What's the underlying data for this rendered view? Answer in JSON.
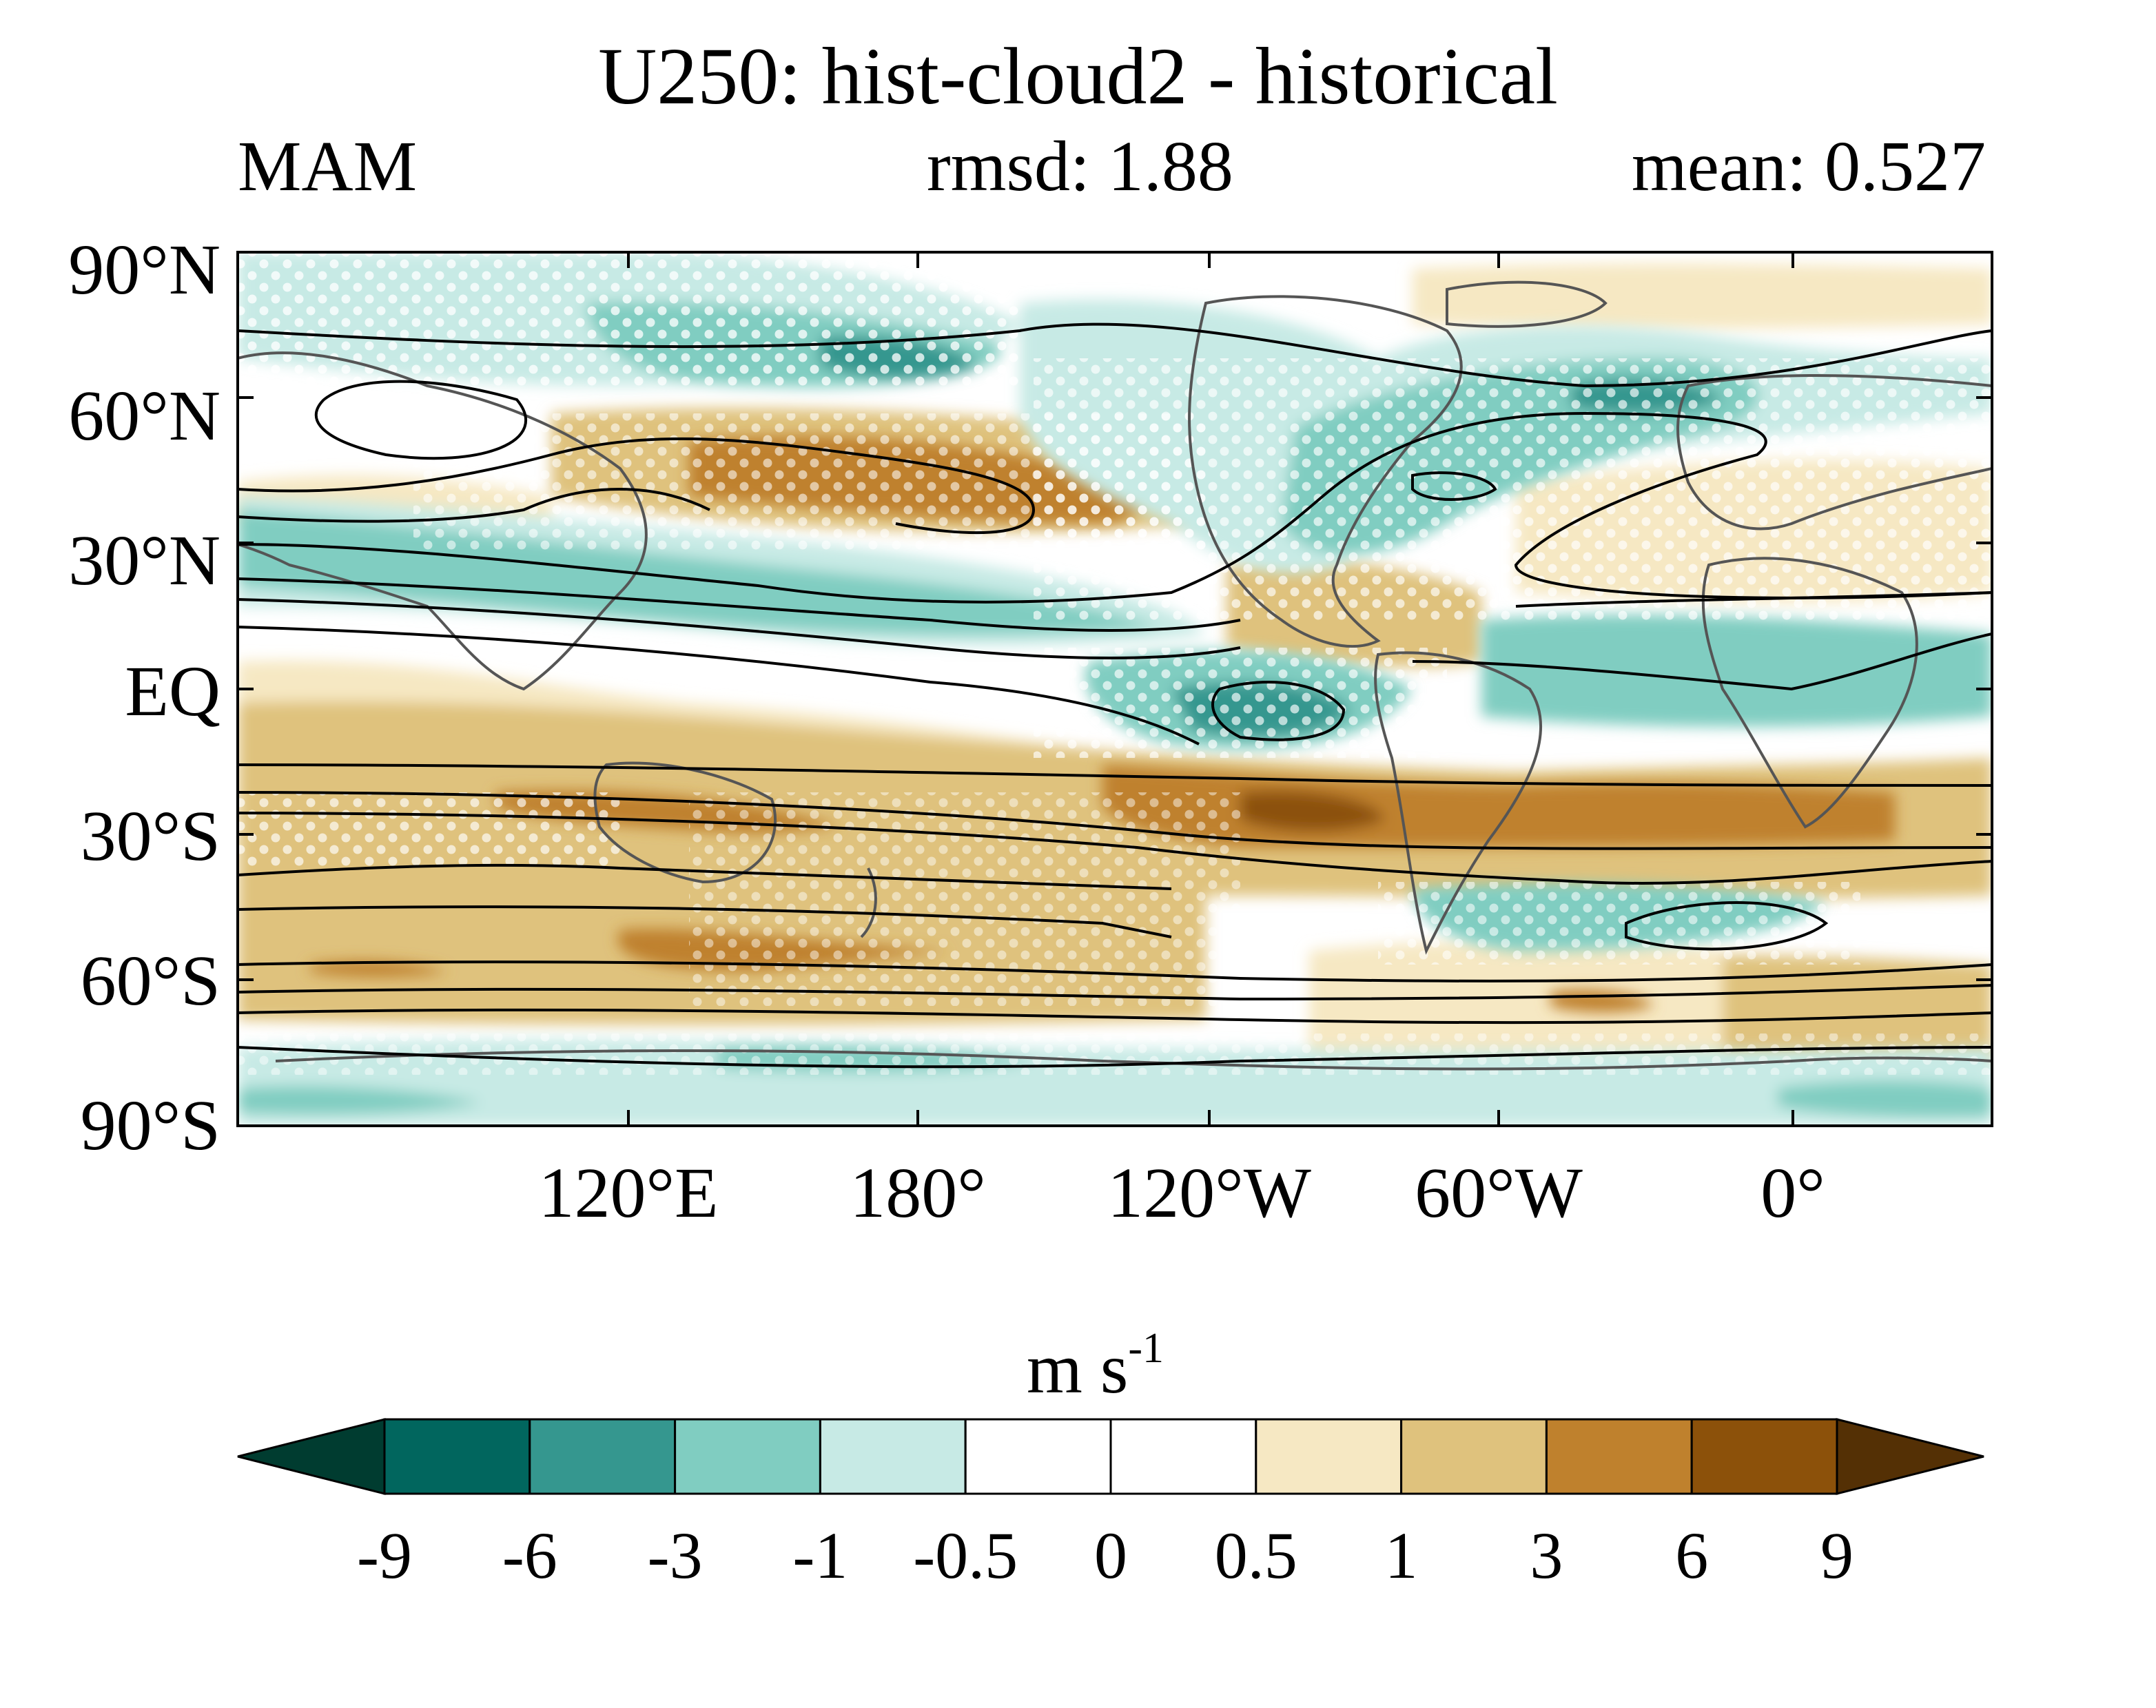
{
  "title": "U250: hist-cloud2 - historical",
  "season": "MAM",
  "rmsd_label": "rmsd: 1.88",
  "mean_label": "mean: 0.527",
  "lat_labels": [
    "90°N",
    "60°N",
    "30°N",
    "EQ",
    "30°S",
    "60°S",
    "90°S"
  ],
  "lon_labels": [
    "120°E",
    "180°",
    "120°W",
    "60°W",
    "0°"
  ],
  "colorbar": {
    "units_base": "m s",
    "units_exp": "-1",
    "levels": [
      "-9",
      "-6",
      "-3",
      "-1",
      "-0.5",
      "0",
      "0.5",
      "1",
      "3",
      "6",
      "9"
    ],
    "colors": [
      "#003c30",
      "#01665e",
      "#35978f",
      "#80cdc1",
      "#c7eae5",
      "#ffffff",
      "#ffffff",
      "#f6e8c3",
      "#dfc27d",
      "#bf812d",
      "#8c510a",
      "#543005"
    ]
  },
  "stippling": "white dots",
  "contours": "black lines"
}
